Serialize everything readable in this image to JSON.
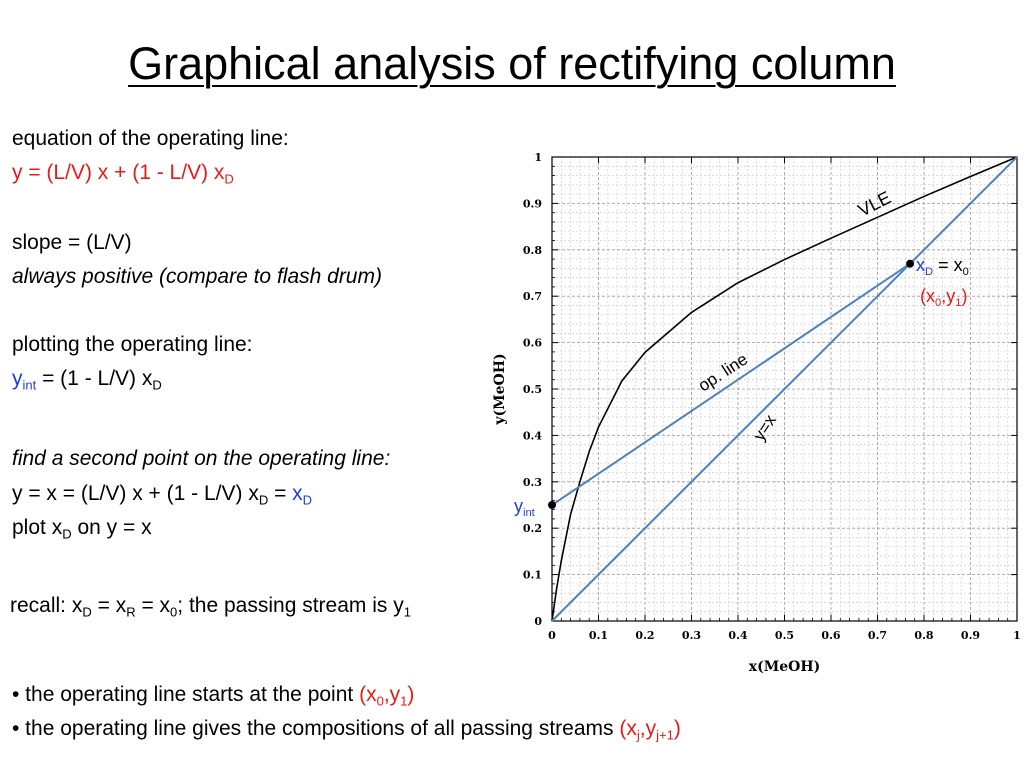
{
  "title": "Graphical analysis of rectifying column",
  "left": {
    "eq_head": "equation of the operating line:",
    "eq_a": "y = (L/V)",
    "eq_b": " x + (1 - L/V) x",
    "eq_sub": "D",
    "slope": "slope = (L/V)",
    "always": "always positive (compare to flash drum)",
    "plot_head": "plotting the operating line:",
    "yint_y": "y",
    "yint_sub": "int",
    "yint_rest": " = (1 - L/V) x",
    "yint_d": "D",
    "find_head": "find a second point on the operating line:",
    "find_a": "y = x = (L/V) x + (1 - L/V) x",
    "find_a_sub": "D",
    "find_eq": " = ",
    "find_x": "x",
    "find_x_sub": "D",
    "plot_xd": "plot x",
    "plot_xd_sub": "D",
    "plot_xd_rest": " on y = x",
    "recall": "recall: x",
    "recall_d": "D",
    "recall_b": " = x",
    "recall_r": "R",
    "recall_c": " = x",
    "recall_0": "0",
    "recall_d2": "; the passing stream is y",
    "recall_1": "1"
  },
  "bullets": {
    "b1": "• the operating line starts at the point ",
    "b1_x": "(x",
    "b1_0": "0",
    "b1_c": ",y",
    "b1_1": "1",
    "b1_end": ")",
    "b2": "• the operating line gives the compositions of all passing streams ",
    "b2_x": "(x",
    "b2_j": "j",
    "b2_c": ",y",
    "b2_j1": "j+1",
    "b2_end": ")"
  },
  "annotations": {
    "xd_x": "x",
    "xd_sub": "D",
    "xd_rest": " = x",
    "xd_0": "0",
    "pt_a": "(x",
    "pt_0": "0",
    "pt_c": ",y",
    "pt_1": "1",
    "pt_e": ")",
    "yint_y": "y",
    "yint_sub": "int"
  },
  "colors": {
    "red": "#e31b1b",
    "blue_text": "#1d3fd8",
    "line_blue": "#4f81bd",
    "vle": "#000000"
  },
  "chart_data": {
    "type": "line",
    "xlabel": "x(MeOH)",
    "ylabel": "y(MeOH)",
    "xlim": [
      0,
      1
    ],
    "ylim": [
      0,
      1
    ],
    "xticks": [
      "0",
      "0.1",
      "0.2",
      "0.3",
      "0.4",
      "0.5",
      "0.6",
      "0.7",
      "0.8",
      "0.9",
      "1"
    ],
    "yticks": [
      "0",
      "0.1",
      "0.2",
      "0.3",
      "0.4",
      "0.5",
      "0.6",
      "0.7",
      "0.8",
      "0.9",
      "1"
    ],
    "grid": true,
    "series": [
      {
        "name": "VLE",
        "color": "#000000",
        "x": [
          0,
          0.01,
          0.02,
          0.04,
          0.06,
          0.08,
          0.1,
          0.15,
          0.2,
          0.3,
          0.4,
          0.5,
          0.6,
          0.7,
          0.8,
          0.9,
          1.0
        ],
        "y": [
          0,
          0.07,
          0.13,
          0.23,
          0.3,
          0.365,
          0.418,
          0.517,
          0.579,
          0.665,
          0.729,
          0.779,
          0.825,
          0.87,
          0.915,
          0.958,
          1.0
        ]
      },
      {
        "name": "op. line",
        "color": "#4f81bd",
        "x": [
          0,
          0.77
        ],
        "y": [
          0.25,
          0.77
        ]
      },
      {
        "name": "y=x",
        "color": "#4f81bd",
        "x": [
          0,
          1
        ],
        "y": [
          0,
          1
        ]
      }
    ],
    "points": [
      {
        "x": 0,
        "y": 0.25
      },
      {
        "x": 0.77,
        "y": 0.77
      }
    ]
  }
}
